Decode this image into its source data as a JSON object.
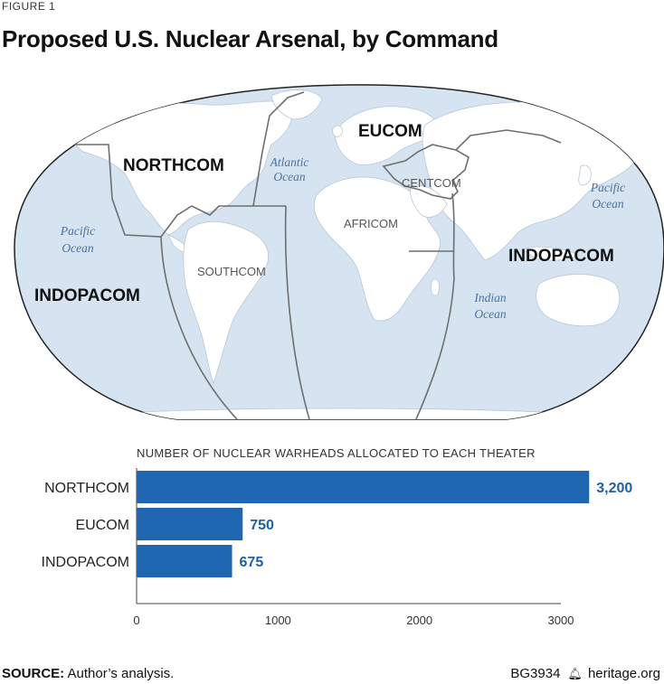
{
  "figure_label": "FIGURE 1",
  "title": "Proposed U.S. Nuclear Arsenal, by Command",
  "map": {
    "commands": {
      "eucom": "EUCOM",
      "northcom": "NORTHCOM",
      "centcom": "CENTCOM",
      "africom": "AFRICOM",
      "southcom": "SOUTHCOM",
      "indopacom_east": "INDOPACOM",
      "indopacom_west": "INDOPACOM"
    },
    "oceans": {
      "atlantic_1": "Atlantic",
      "atlantic_2": "Ocean",
      "pacific_east_1": "Pacific",
      "pacific_east_2": "Ocean",
      "pacific_west_1": "Pacific",
      "pacific_west_2": "Ocean",
      "indian_1": "Indian",
      "indian_2": "Ocean"
    },
    "colors": {
      "ocean": "#d6e4f1",
      "land": "#ffffff",
      "border": "#6e6e6e"
    }
  },
  "chart_data": {
    "type": "bar",
    "orientation": "horizontal",
    "title": "NUMBER OF NUCLEAR WARHEADS ALLOCATED TO EACH THEATER",
    "categories": [
      "NORTHCOM",
      "EUCOM",
      "INDOPACOM"
    ],
    "values": [
      3200,
      750,
      675
    ],
    "value_labels": [
      "3,200",
      "750",
      "675"
    ],
    "xlim": [
      0,
      3000
    ],
    "xticks": [
      0,
      1000,
      2000,
      3000
    ],
    "bar_color": "#1f67b1",
    "grid": false
  },
  "footer": {
    "source_label": "SOURCE:",
    "source_text": " Author’s analysis.",
    "code": "BG3934",
    "site": "heritage.org"
  }
}
